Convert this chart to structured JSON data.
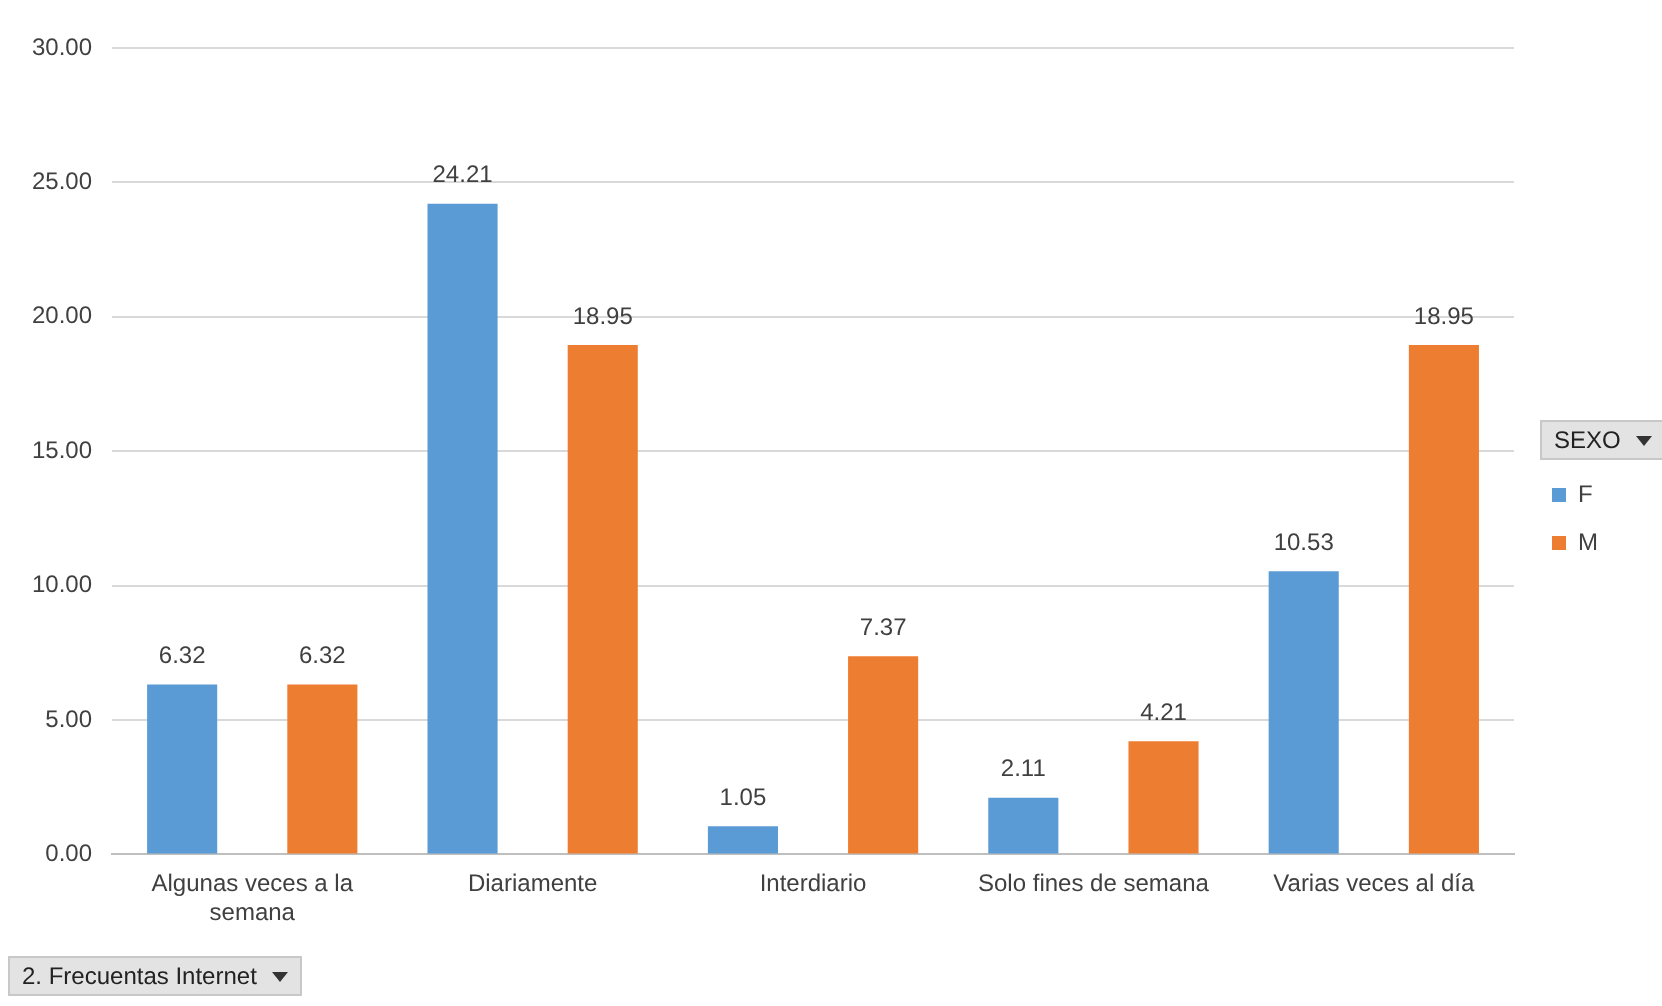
{
  "chart_data": {
    "type": "bar",
    "categories": [
      "Algunas veces a la semana",
      "Diariamente",
      "Interdiario",
      "Solo fines de semana",
      "Varias veces al día"
    ],
    "series": [
      {
        "name": "F",
        "color": "#5b9bd5",
        "values": [
          6.32,
          24.21,
          1.05,
          2.11,
          10.53
        ]
      },
      {
        "name": "M",
        "color": "#ed7d31",
        "values": [
          6.32,
          18.95,
          7.37,
          4.21,
          18.95
        ]
      }
    ],
    "xlabel": "2. Frecuentas Internet",
    "legend_title": "SEXO",
    "ylim": [
      0,
      30
    ],
    "yticks": [
      {
        "value": 0,
        "label": "0.00"
      },
      {
        "value": 5,
        "label": "5.00"
      },
      {
        "value": 10,
        "label": "10.00"
      },
      {
        "value": 15,
        "label": "15.00"
      },
      {
        "value": 20,
        "label": "20.00"
      },
      {
        "value": 25,
        "label": "25.00"
      },
      {
        "value": 30,
        "label": "30.00"
      }
    ],
    "grid": "y",
    "legend": "right",
    "data_labels": true
  }
}
